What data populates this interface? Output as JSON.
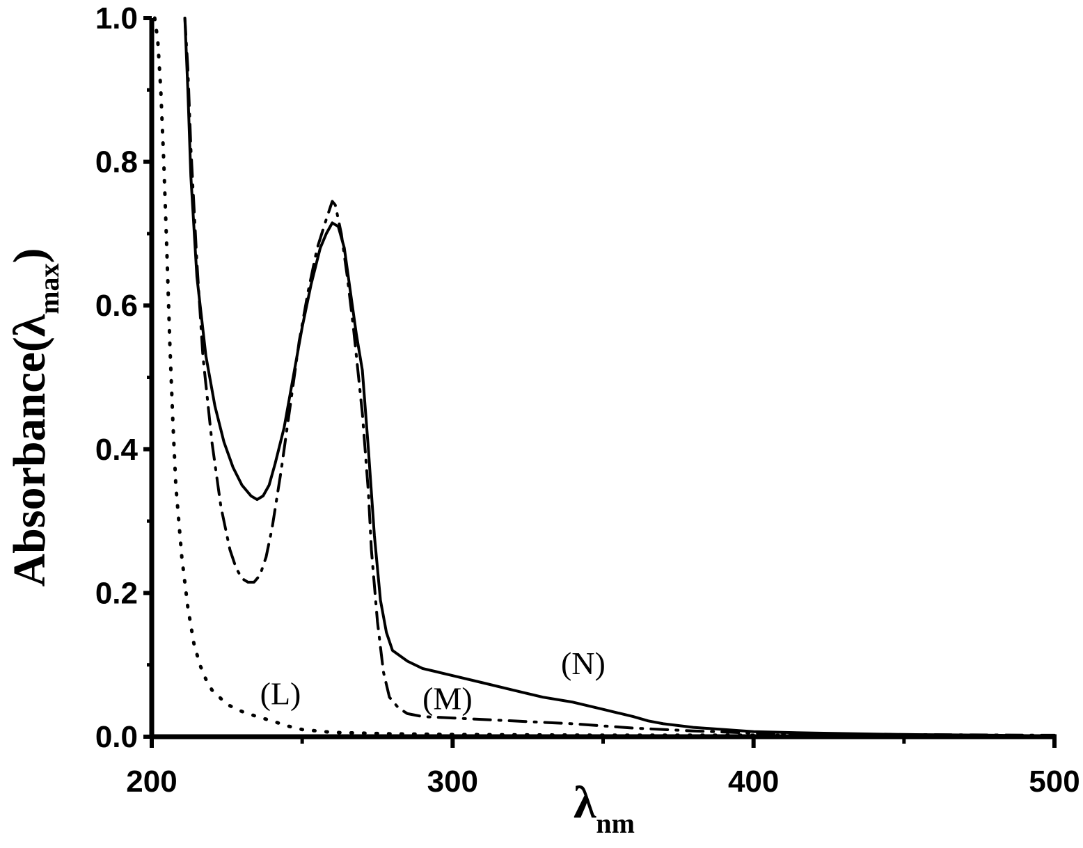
{
  "chart_data": {
    "type": "line",
    "title": "",
    "xlabel": "λ",
    "xlabel_sub": "nm",
    "ylabel": "Absorbance(λ",
    "ylabel_sub": "max",
    "ylabel_close": ")",
    "xlim": [
      200,
      500
    ],
    "ylim": [
      0.0,
      1.0
    ],
    "x_ticks": [
      "200",
      "300",
      "400",
      "500"
    ],
    "y_ticks": [
      "0.0",
      "0.2",
      "0.4",
      "0.6",
      "0.8",
      "1.0"
    ],
    "grid": false,
    "legend": "none",
    "series": [
      {
        "name": "(L)",
        "style": "dotted",
        "x": [
          201,
          202,
          203,
          204,
          205,
          206,
          207,
          208,
          210,
          212,
          214,
          216,
          218,
          220,
          225,
          230,
          235,
          240,
          245,
          250,
          260,
          280,
          300,
          350,
          400,
          450,
          500
        ],
        "y": [
          1.0,
          0.97,
          0.9,
          0.8,
          0.68,
          0.55,
          0.44,
          0.35,
          0.25,
          0.18,
          0.13,
          0.1,
          0.08,
          0.065,
          0.045,
          0.035,
          0.028,
          0.022,
          0.015,
          0.01,
          0.006,
          0.004,
          0.003,
          0.002,
          0.002,
          0.001,
          0.001
        ]
      },
      {
        "name": "(M)",
        "style": "dash-dot",
        "x": [
          211,
          212,
          213,
          215,
          217,
          220,
          223,
          226,
          228,
          230,
          232,
          234,
          236,
          238,
          240,
          243,
          246,
          249,
          252,
          255,
          258,
          260,
          261,
          263,
          265,
          267,
          270,
          272,
          273,
          275,
          277,
          279,
          282,
          285,
          290,
          300,
          320,
          340,
          360,
          380,
          400,
          450,
          500
        ],
        "y": [
          1.0,
          0.93,
          0.82,
          0.66,
          0.53,
          0.41,
          0.32,
          0.26,
          0.235,
          0.22,
          0.215,
          0.215,
          0.225,
          0.25,
          0.29,
          0.37,
          0.46,
          0.55,
          0.62,
          0.68,
          0.72,
          0.745,
          0.74,
          0.7,
          0.64,
          0.57,
          0.45,
          0.34,
          0.26,
          0.16,
          0.09,
          0.055,
          0.04,
          0.032,
          0.028,
          0.026,
          0.022,
          0.018,
          0.012,
          0.008,
          0.005,
          0.003,
          0.002
        ]
      },
      {
        "name": "(N)",
        "style": "solid",
        "x": [
          211,
          212,
          213,
          215,
          218,
          221,
          224,
          227,
          230,
          233,
          235,
          237,
          239,
          241,
          244,
          247,
          250,
          253,
          256,
          258,
          260,
          262,
          264,
          266,
          268,
          270,
          272,
          274,
          276,
          278,
          280,
          285,
          290,
          295,
          300,
          310,
          320,
          330,
          340,
          350,
          355,
          360,
          365,
          370,
          380,
          400,
          420,
          450,
          480,
          500
        ],
        "y": [
          1.0,
          0.9,
          0.78,
          0.64,
          0.53,
          0.46,
          0.41,
          0.375,
          0.35,
          0.335,
          0.33,
          0.335,
          0.35,
          0.38,
          0.43,
          0.5,
          0.57,
          0.63,
          0.68,
          0.7,
          0.715,
          0.71,
          0.68,
          0.62,
          0.56,
          0.51,
          0.4,
          0.28,
          0.19,
          0.145,
          0.12,
          0.105,
          0.095,
          0.09,
          0.085,
          0.075,
          0.065,
          0.055,
          0.048,
          0.038,
          0.033,
          0.028,
          0.022,
          0.018,
          0.013,
          0.007,
          0.005,
          0.003,
          0.002,
          0.001
        ]
      }
    ],
    "annotations": [
      {
        "text": "(L)",
        "x": 236,
        "y": 0.045
      },
      {
        "text": "(M)",
        "x": 290,
        "y": 0.038
      },
      {
        "text": "(N)",
        "x": 336,
        "y": 0.087
      }
    ]
  }
}
